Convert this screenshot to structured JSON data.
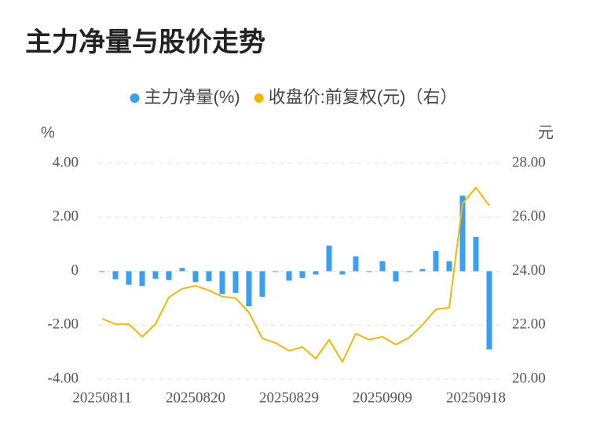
{
  "chart_data": {
    "type": "bar-line",
    "title": "主力净量与股价走势",
    "ylabel": "%",
    "y2label": "元",
    "categories": [
      "20250811",
      null,
      null,
      null,
      null,
      null,
      null,
      "20250820",
      null,
      null,
      null,
      null,
      null,
      null,
      "20250829",
      null,
      null,
      null,
      null,
      null,
      null,
      "20250909",
      null,
      null,
      null,
      null,
      null,
      null,
      "20250918",
      null
    ],
    "series": [
      {
        "name": "主力净量(%)",
        "color": "#3a9ff0",
        "kind": "bar",
        "values": [
          -0.02,
          -0.3,
          -0.5,
          -0.55,
          -0.28,
          -0.33,
          0.12,
          -0.4,
          -0.37,
          -0.85,
          -0.8,
          -1.3,
          -0.95,
          -0.03,
          -0.35,
          -0.25,
          -0.12,
          0.95,
          -0.12,
          0.55,
          0.0,
          0.37,
          -0.38,
          -0.03,
          0.08,
          0.75,
          0.37,
          2.8,
          1.27,
          -2.9
        ]
      },
      {
        "name": "收盘价:前复权(元)（右）",
        "color": "#f5b800",
        "kind": "line",
        "axis": "y2",
        "values": [
          22.24,
          22.04,
          22.04,
          21.57,
          22.04,
          23.03,
          23.35,
          23.46,
          23.29,
          23.06,
          23.0,
          22.47,
          21.51,
          21.34,
          21.05,
          21.19,
          20.76,
          21.46,
          20.64,
          21.69,
          21.46,
          21.57,
          21.28,
          21.54,
          22.01,
          22.59,
          22.65,
          26.51,
          27.1,
          26.43
        ]
      }
    ],
    "ylim": [
      -4,
      4
    ],
    "yticks": [
      {
        "value": -4,
        "label": "-4.00"
      },
      {
        "value": -2,
        "label": "-2.00"
      },
      0,
      {
        "value": 2,
        "label": "2.00"
      },
      {
        "value": 4,
        "label": "4.00"
      }
    ],
    "y2lim": [
      20,
      28
    ],
    "y2ticks": [
      {
        "value": 20,
        "label": "20.00"
      },
      {
        "value": 22,
        "label": "22.00"
      },
      {
        "value": 24,
        "label": "24.00"
      },
      {
        "value": 26,
        "label": "26.00"
      },
      {
        "value": 28,
        "label": "28.00"
      }
    ],
    "grid": true,
    "legend": "top"
  }
}
